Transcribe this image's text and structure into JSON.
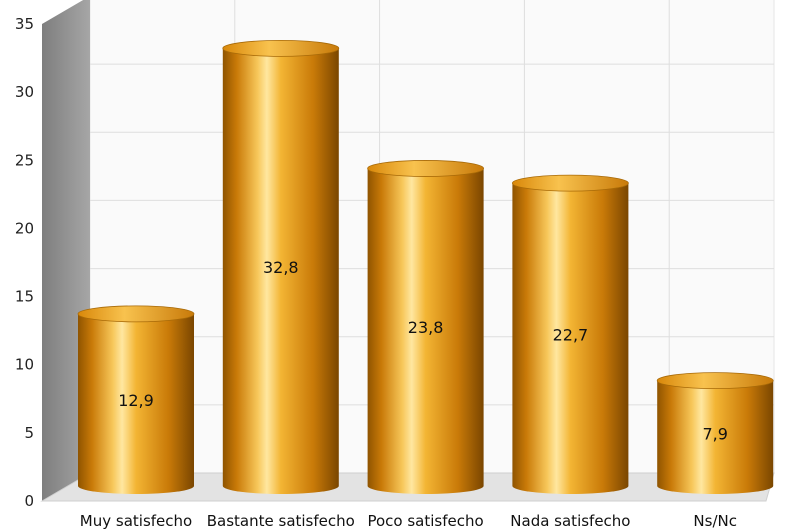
{
  "chart_data": {
    "type": "bar",
    "style": "3d-cylinder",
    "categories": [
      "Muy satisfecho",
      "Bastante satisfecho",
      "Poco satisfecho",
      "Nada satisfecho",
      "Ns/Nc"
    ],
    "values": [
      12.9,
      32.8,
      23.8,
      22.7,
      7.9
    ],
    "data_labels": [
      "12,9",
      "32,8",
      "23,8",
      "22,7",
      "7,9"
    ],
    "title": "",
    "xlabel": "",
    "ylabel": "",
    "ylim": [
      0,
      35
    ],
    "yticks": [
      0,
      5,
      10,
      15,
      20,
      25,
      30,
      35
    ],
    "grid": true,
    "legend": "none",
    "colors": {
      "bar_dark": "#8f5400",
      "bar_mid": "#d9880a",
      "bar_light": "#ffe38f",
      "bar_top": "#f0a92a",
      "side_wall": "#8c8c8c",
      "floor": "#e3e3e3",
      "grid": "#dedede"
    }
  }
}
